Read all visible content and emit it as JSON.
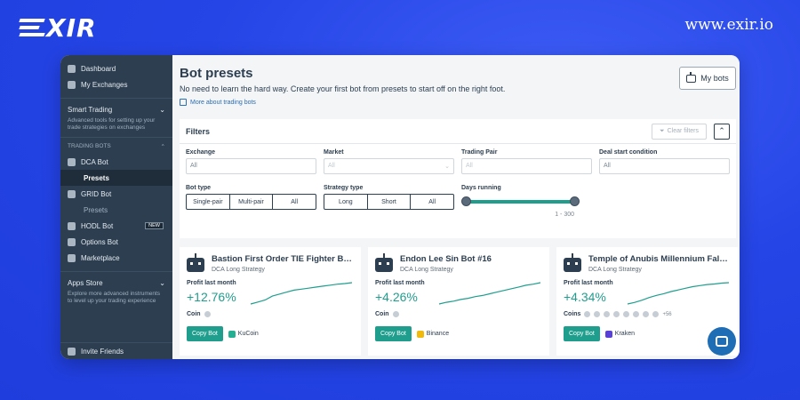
{
  "brand": {
    "logo_text": "XIR",
    "url": "www.exir.io"
  },
  "sidebar": {
    "top_items": [
      {
        "label": "Dashboard",
        "icon": "dashboard-icon"
      },
      {
        "label": "My Exchanges",
        "icon": "exchange-icon"
      }
    ],
    "smart_trading": {
      "title": "Smart Trading",
      "desc": "Advanced tools for setting up your trade strategies on exchanges"
    },
    "trading_bots_label": "TRADING BOTS",
    "bots": [
      {
        "label": "DCA Bot",
        "icon": "dca-bot-icon"
      },
      {
        "label": "Presets",
        "sub": true,
        "active": true
      },
      {
        "label": "GRID Bot",
        "icon": "grid-bot-icon"
      },
      {
        "label": "Presets",
        "sub": true,
        "dim": true
      },
      {
        "label": "HODL Bot",
        "icon": "hodl-bot-icon",
        "badge": "NEW"
      },
      {
        "label": "Options Bot",
        "icon": "options-bot-icon"
      },
      {
        "label": "Marketplace",
        "icon": "marketplace-icon"
      }
    ],
    "apps_store": {
      "title": "Apps Store",
      "desc": "Explore more advanced instruments to level up your trading experience"
    },
    "invite": "Invite Friends"
  },
  "main": {
    "title": "Bot presets",
    "subtitle": "No need to learn the hard way. Create your first bot from presets to start off on the right foot.",
    "more_link": "More about trading bots",
    "my_bots": "My bots"
  },
  "filters": {
    "title": "Filters",
    "clear": "Clear filters",
    "exchange": {
      "label": "Exchange",
      "value": "All"
    },
    "market": {
      "label": "Market",
      "value": "All"
    },
    "pair": {
      "label": "Trading Pair",
      "value": "All"
    },
    "deal_start": {
      "label": "Deal start condition",
      "value": "All"
    },
    "bot_type": {
      "label": "Bot type",
      "options": [
        "Single-pair",
        "Multi-pair",
        "All"
      ]
    },
    "strategy_type": {
      "label": "Strategy type",
      "options": [
        "Long",
        "Short",
        "All"
      ]
    },
    "days_running": {
      "label": "Days running",
      "range": "1 - 300"
    }
  },
  "cards": [
    {
      "title": "Bastion First Order TIE Fighter Bo...",
      "strategy": "DCA Long Strategy",
      "profit_label": "Profit last month",
      "profit": "+12.76%",
      "coin_label": "Coin",
      "coin_count_extra": "",
      "copy": "Copy Bot",
      "exchange": "KuCoin",
      "exchange_color": "#23af91",
      "spark": [
        2,
        3,
        4,
        6,
        7,
        8,
        9,
        9.5,
        10,
        10.5,
        11,
        11.5,
        12,
        12.3,
        12.76
      ]
    },
    {
      "title": "Endon Lee Sin Bot #16",
      "strategy": "DCA Long Strategy",
      "profit_label": "Profit last month",
      "profit": "+4.26%",
      "coin_label": "Coin",
      "coin_count_extra": "",
      "copy": "Copy Bot",
      "exchange": "Binance",
      "exchange_color": "#f0b90b",
      "spark": [
        0.5,
        0.8,
        1.0,
        1.3,
        1.5,
        1.8,
        2.0,
        2.3,
        2.6,
        2.9,
        3.2,
        3.5,
        3.8,
        4.0,
        4.26
      ]
    },
    {
      "title": "Temple of Anubis Millennium Falc...",
      "strategy": "DCA Long Strategy",
      "profit_label": "Profit last month",
      "profit": "+4.34%",
      "coin_label": "Coins",
      "coin_count_extra": "+56",
      "copy": "Copy Bot",
      "exchange": "Kraken",
      "exchange_color": "#5841d8",
      "spark": [
        0.4,
        0.7,
        1.1,
        1.6,
        2.0,
        2.3,
        2.7,
        3.0,
        3.3,
        3.6,
        3.8,
        4.0,
        4.1,
        4.25,
        4.34
      ]
    }
  ]
}
